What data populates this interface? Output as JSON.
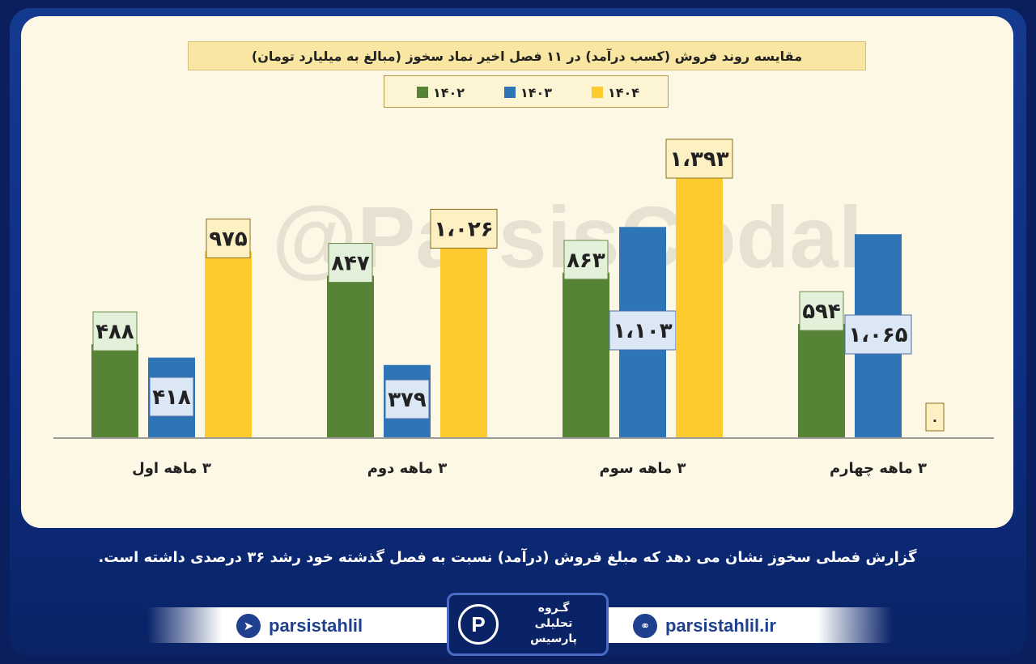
{
  "header": {
    "title": "مقایسه روند فروش (کسب درآمد) در ۱۱ فصل اخیر نماد سخوز (مبالغ به میلیارد تومان)"
  },
  "watermark": "@ParsisCodal",
  "colors": {
    "y1402": "#568335",
    "y1403": "#2e75b8",
    "y1404": "#fecb2f"
  },
  "chart_data": {
    "type": "bar",
    "title": "مقایسه روند فروش (کسب درآمد) در ۱۱ فصل اخیر نماد سخوز (مبالغ به میلیارد تومان)",
    "categories": [
      "۳ ماهه اول",
      "۳ ماهه دوم",
      "۳ ماهه سوم",
      "۳ ماهه چهارم"
    ],
    "series": [
      {
        "name": "۱۴۰۲",
        "values": [
          488,
          847,
          863,
          594
        ],
        "labels": [
          "۴۸۸",
          "۸۴۷",
          "۸۶۳",
          "۵۹۴"
        ]
      },
      {
        "name": "۱۴۰۳",
        "values": [
          418,
          379,
          1103,
          1065
        ],
        "labels": [
          "۴۱۸",
          "۳۷۹",
          "۱،۱۰۳",
          "۱،۰۶۵"
        ]
      },
      {
        "name": "۱۴۰۴",
        "values": [
          975,
          1026,
          1393,
          0
        ],
        "labels": [
          "۹۷۵",
          "۱،۰۲۶",
          "۱،۳۹۳",
          "۰"
        ]
      }
    ],
    "ylim": [
      0,
      1393
    ],
    "grid": false,
    "legend": "top-center"
  },
  "summary": "گزارش فصلی سخوز نشان می دهد که مبلغ فروش (درآمد) نسبت به فصل گذشته خود رشد ۳۶ درصدی داشته است.",
  "footer": {
    "telegram": "parsistahlil",
    "website": "parsistahlil.ir",
    "logo_lines": [
      "گـروه",
      "تحلیلی",
      "پارسیس"
    ]
  }
}
